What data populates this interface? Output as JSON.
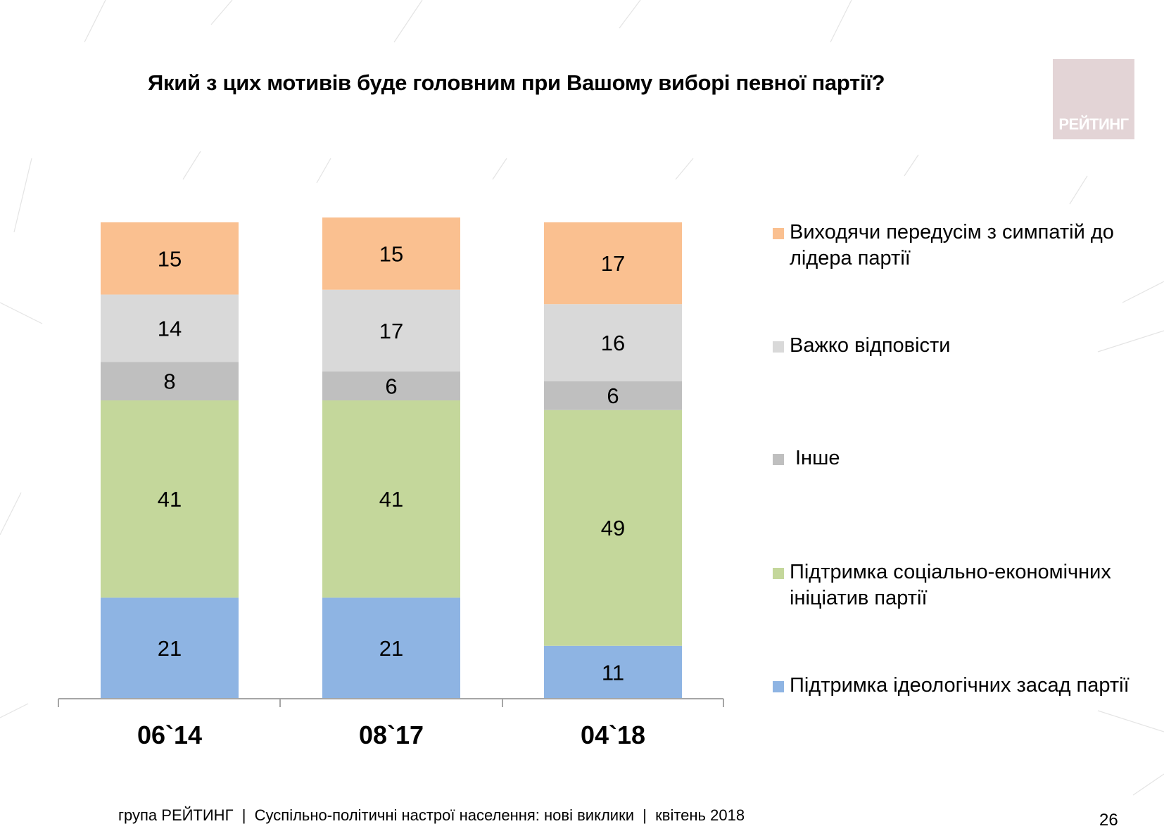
{
  "title": "Який з цих мотивів буде головним при Вашому виборі певної партії?",
  "logo": {
    "text": "РЕЙТИНГ",
    "color": "#e3d4d6"
  },
  "chart_data": {
    "type": "bar",
    "stacked": true,
    "categories": [
      "06`14",
      "08`17",
      "04`18"
    ],
    "series": [
      {
        "name": "Підтримка ідеологічних засад партії",
        "color": "#8eb4e3",
        "values": [
          21,
          21,
          11
        ]
      },
      {
        "name": "Підтримка соціально-економічних ініціатив партії",
        "color": "#c4d79b",
        "values": [
          41,
          41,
          49
        ]
      },
      {
        "name": "Інше",
        "color": "#bfbfbf",
        "values": [
          8,
          6,
          6
        ]
      },
      {
        "name": "Важко відповісти",
        "color": "#d9d9d9",
        "values": [
          14,
          17,
          16
        ]
      },
      {
        "name": "Виходячи передусім з симпатій до лідера партії",
        "color": "#fac090",
        "values": [
          15,
          15,
          17
        ]
      }
    ],
    "legend_order": [
      4,
      3,
      2,
      1,
      0
    ],
    "legend_position": "right",
    "ylim": [
      0,
      99
    ],
    "grid": false
  },
  "footer": "група РЕЙТИНГ  |  Суспільно-політичні настрої населення: нові виклики  |  квітень 2018",
  "page_number": "26"
}
